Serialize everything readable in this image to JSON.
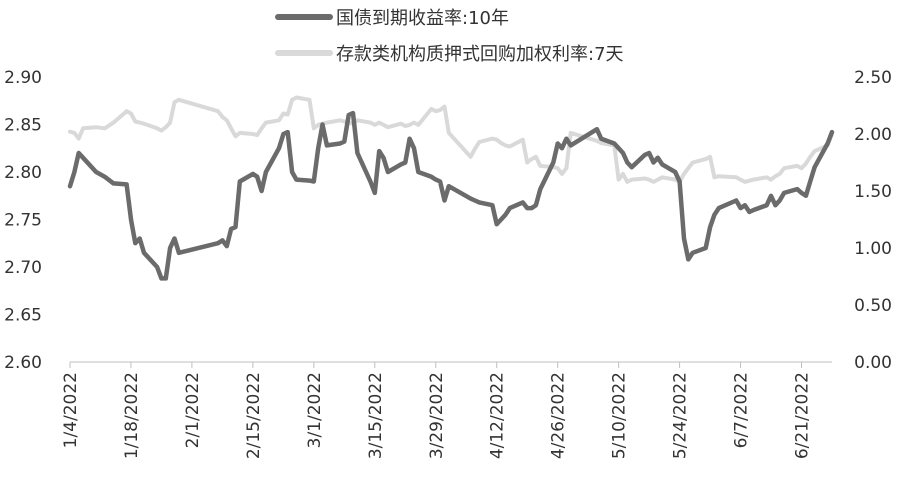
{
  "chart_data": {
    "type": "line",
    "title": "",
    "xlabel": "",
    "ylabel": "",
    "y_left_lim": [
      2.6,
      2.9
    ],
    "y_right_lim": [
      0.0,
      2.5
    ],
    "y_left_ticks": [
      "2.90",
      "2.85",
      "2.80",
      "2.75",
      "2.70",
      "2.65",
      "2.60"
    ],
    "y_right_ticks": [
      "2.50",
      "2.00",
      "1.50",
      "1.00",
      "0.50",
      "0.00"
    ],
    "x_tick_labels": [
      "1/4/2022",
      "1/18/2022",
      "2/1/2022",
      "2/15/2022",
      "3/1/2022",
      "3/15/2022",
      "3/29/2022",
      "4/12/2022",
      "4/26/2022",
      "5/10/2022",
      "5/24/2022",
      "6/7/2022",
      "6/21/2022"
    ],
    "grid": false,
    "legend_position": "top",
    "series": [
      {
        "name": "国债到期收益率:10年",
        "axis": "left",
        "color": "#6b6b6b",
        "points": [
          [
            "2022-01-04",
            2.785
          ],
          [
            "2022-01-05",
            2.8
          ],
          [
            "2022-01-06",
            2.82
          ],
          [
            "2022-01-07",
            2.815
          ],
          [
            "2022-01-10",
            2.8
          ],
          [
            "2022-01-12",
            2.795
          ],
          [
            "2022-01-14",
            2.788
          ],
          [
            "2022-01-17",
            2.787
          ],
          [
            "2022-01-18",
            2.75
          ],
          [
            "2022-01-19",
            2.725
          ],
          [
            "2022-01-20",
            2.73
          ],
          [
            "2022-01-21",
            2.715
          ],
          [
            "2022-01-24",
            2.7
          ],
          [
            "2022-01-25",
            2.688
          ],
          [
            "2022-01-26",
            2.688
          ],
          [
            "2022-01-27",
            2.72
          ],
          [
            "2022-01-28",
            2.73
          ],
          [
            "2022-01-29",
            2.715
          ],
          [
            "2022-02-07",
            2.725
          ],
          [
            "2022-02-08",
            2.728
          ],
          [
            "2022-02-09",
            2.722
          ],
          [
            "2022-02-10",
            2.74
          ],
          [
            "2022-02-11",
            2.742
          ],
          [
            "2022-02-12",
            2.79
          ],
          [
            "2022-02-15",
            2.798
          ],
          [
            "2022-02-16",
            2.795
          ],
          [
            "2022-02-17",
            2.78
          ],
          [
            "2022-02-18",
            2.8
          ],
          [
            "2022-02-21",
            2.825
          ],
          [
            "2022-02-22",
            2.84
          ],
          [
            "2022-02-23",
            2.842
          ],
          [
            "2022-02-24",
            2.8
          ],
          [
            "2022-02-25",
            2.792
          ],
          [
            "2022-02-28",
            2.791
          ],
          [
            "2022-03-01",
            2.79
          ],
          [
            "2022-03-02",
            2.825
          ],
          [
            "2022-03-03",
            2.85
          ],
          [
            "2022-03-04",
            2.828
          ],
          [
            "2022-03-07",
            2.83
          ],
          [
            "2022-03-08",
            2.832
          ],
          [
            "2022-03-09",
            2.86
          ],
          [
            "2022-03-10",
            2.862
          ],
          [
            "2022-03-11",
            2.82
          ],
          [
            "2022-03-14",
            2.79
          ],
          [
            "2022-03-15",
            2.778
          ],
          [
            "2022-03-16",
            2.822
          ],
          [
            "2022-03-17",
            2.815
          ],
          [
            "2022-03-18",
            2.8
          ],
          [
            "2022-03-21",
            2.808
          ],
          [
            "2022-03-22",
            2.81
          ],
          [
            "2022-03-23",
            2.835
          ],
          [
            "2022-03-24",
            2.825
          ],
          [
            "2022-03-25",
            2.8
          ],
          [
            "2022-03-28",
            2.795
          ],
          [
            "2022-03-29",
            2.792
          ],
          [
            "2022-03-30",
            2.79
          ],
          [
            "2022-03-31",
            2.77
          ],
          [
            "2022-04-01",
            2.785
          ],
          [
            "2022-04-06",
            2.772
          ],
          [
            "2022-04-07",
            2.77
          ],
          [
            "2022-04-08",
            2.768
          ],
          [
            "2022-04-11",
            2.765
          ],
          [
            "2022-04-12",
            2.745
          ],
          [
            "2022-04-13",
            2.75
          ],
          [
            "2022-04-14",
            2.755
          ],
          [
            "2022-04-15",
            2.762
          ],
          [
            "2022-04-18",
            2.768
          ],
          [
            "2022-04-19",
            2.762
          ],
          [
            "2022-04-20",
            2.762
          ],
          [
            "2022-04-21",
            2.765
          ],
          [
            "2022-04-22",
            2.782
          ],
          [
            "2022-04-25",
            2.81
          ],
          [
            "2022-04-26",
            2.83
          ],
          [
            "2022-04-27",
            2.825
          ],
          [
            "2022-04-28",
            2.835
          ],
          [
            "2022-04-29",
            2.828
          ],
          [
            "2022-05-05",
            2.845
          ],
          [
            "2022-05-06",
            2.835
          ],
          [
            "2022-05-09",
            2.83
          ],
          [
            "2022-05-10",
            2.825
          ],
          [
            "2022-05-11",
            2.82
          ],
          [
            "2022-05-12",
            2.81
          ],
          [
            "2022-05-13",
            2.805
          ],
          [
            "2022-05-16",
            2.818
          ],
          [
            "2022-05-17",
            2.82
          ],
          [
            "2022-05-18",
            2.81
          ],
          [
            "2022-05-19",
            2.815
          ],
          [
            "2022-05-20",
            2.808
          ],
          [
            "2022-05-23",
            2.8
          ],
          [
            "2022-05-24",
            2.79
          ],
          [
            "2022-05-25",
            2.73
          ],
          [
            "2022-05-26",
            2.708
          ],
          [
            "2022-05-27",
            2.715
          ],
          [
            "2022-05-30",
            2.72
          ],
          [
            "2022-05-31",
            2.742
          ],
          [
            "2022-06-01",
            2.755
          ],
          [
            "2022-06-02",
            2.762
          ],
          [
            "2022-06-06",
            2.77
          ],
          [
            "2022-06-07",
            2.762
          ],
          [
            "2022-06-08",
            2.765
          ],
          [
            "2022-06-09",
            2.758
          ],
          [
            "2022-06-10",
            2.76
          ],
          [
            "2022-06-13",
            2.765
          ],
          [
            "2022-06-14",
            2.775
          ],
          [
            "2022-06-15",
            2.765
          ],
          [
            "2022-06-16",
            2.77
          ],
          [
            "2022-06-17",
            2.778
          ],
          [
            "2022-06-20",
            2.782
          ],
          [
            "2022-06-21",
            2.778
          ],
          [
            "2022-06-22",
            2.775
          ],
          [
            "2022-06-23",
            2.79
          ],
          [
            "2022-06-24",
            2.805
          ],
          [
            "2022-06-27",
            2.83
          ],
          [
            "2022-06-28",
            2.842
          ]
        ]
      },
      {
        "name": "存款类机构质押式回购加权利率:7天",
        "axis": "right",
        "color": "#d9d9d9",
        "points": [
          [
            "2022-01-04",
            2.02
          ],
          [
            "2022-01-05",
            2.01
          ],
          [
            "2022-01-06",
            1.96
          ],
          [
            "2022-01-07",
            2.05
          ],
          [
            "2022-01-10",
            2.06
          ],
          [
            "2022-01-12",
            2.05
          ],
          [
            "2022-01-14",
            2.1
          ],
          [
            "2022-01-17",
            2.2
          ],
          [
            "2022-01-18",
            2.18
          ],
          [
            "2022-01-19",
            2.11
          ],
          [
            "2022-01-20",
            2.1
          ],
          [
            "2022-01-21",
            2.09
          ],
          [
            "2022-01-24",
            2.05
          ],
          [
            "2022-01-25",
            2.03
          ],
          [
            "2022-01-26",
            2.06
          ],
          [
            "2022-01-27",
            2.1
          ],
          [
            "2022-01-28",
            2.28
          ],
          [
            "2022-01-29",
            2.3
          ],
          [
            "2022-02-07",
            2.2
          ],
          [
            "2022-02-08",
            2.15
          ],
          [
            "2022-02-09",
            2.12
          ],
          [
            "2022-02-10",
            2.05
          ],
          [
            "2022-02-11",
            1.98
          ],
          [
            "2022-02-12",
            2.01
          ],
          [
            "2022-02-15",
            2.0
          ],
          [
            "2022-02-16",
            1.99
          ],
          [
            "2022-02-17",
            2.05
          ],
          [
            "2022-02-18",
            2.1
          ],
          [
            "2022-02-21",
            2.12
          ],
          [
            "2022-02-22",
            2.18
          ],
          [
            "2022-02-23",
            2.17
          ],
          [
            "2022-02-24",
            2.3
          ],
          [
            "2022-02-25",
            2.32
          ],
          [
            "2022-02-28",
            2.3
          ],
          [
            "2022-03-01",
            2.05
          ],
          [
            "2022-03-02",
            2.08
          ],
          [
            "2022-03-03",
            2.09
          ],
          [
            "2022-03-04",
            2.1
          ],
          [
            "2022-03-07",
            2.12
          ],
          [
            "2022-03-08",
            2.11
          ],
          [
            "2022-03-09",
            2.1
          ],
          [
            "2022-03-10",
            2.09
          ],
          [
            "2022-03-11",
            2.12
          ],
          [
            "2022-03-14",
            2.1
          ],
          [
            "2022-03-15",
            2.08
          ],
          [
            "2022-03-16",
            2.1
          ],
          [
            "2022-03-17",
            2.08
          ],
          [
            "2022-03-18",
            2.06
          ],
          [
            "2022-03-21",
            2.09
          ],
          [
            "2022-03-22",
            2.07
          ],
          [
            "2022-03-23",
            2.08
          ],
          [
            "2022-03-24",
            2.1
          ],
          [
            "2022-03-25",
            2.08
          ],
          [
            "2022-03-28",
            2.22
          ],
          [
            "2022-03-29",
            2.2
          ],
          [
            "2022-03-30",
            2.21
          ],
          [
            "2022-03-31",
            2.24
          ],
          [
            "2022-04-01",
            2.01
          ],
          [
            "2022-04-06",
            1.8
          ],
          [
            "2022-04-07",
            1.87
          ],
          [
            "2022-04-08",
            1.93
          ],
          [
            "2022-04-11",
            1.96
          ],
          [
            "2022-04-12",
            1.95
          ],
          [
            "2022-04-13",
            1.92
          ],
          [
            "2022-04-14",
            1.9
          ],
          [
            "2022-04-15",
            1.89
          ],
          [
            "2022-04-18",
            1.95
          ],
          [
            "2022-04-19",
            1.75
          ],
          [
            "2022-04-20",
            1.78
          ],
          [
            "2022-04-21",
            1.8
          ],
          [
            "2022-04-22",
            1.72
          ],
          [
            "2022-04-25",
            1.71
          ],
          [
            "2022-04-26",
            1.7
          ],
          [
            "2022-04-27",
            1.65
          ],
          [
            "2022-04-28",
            1.7
          ],
          [
            "2022-04-29",
            2.01
          ],
          [
            "2022-05-05",
            1.94
          ],
          [
            "2022-05-06",
            1.92
          ],
          [
            "2022-05-09",
            1.9
          ],
          [
            "2022-05-10",
            1.6
          ],
          [
            "2022-05-11",
            1.65
          ],
          [
            "2022-05-12",
            1.58
          ],
          [
            "2022-05-13",
            1.6
          ],
          [
            "2022-05-16",
            1.61
          ],
          [
            "2022-05-17",
            1.6
          ],
          [
            "2022-05-18",
            1.58
          ],
          [
            "2022-05-19",
            1.6
          ],
          [
            "2022-05-20",
            1.62
          ],
          [
            "2022-05-23",
            1.6
          ],
          [
            "2022-05-24",
            1.58
          ],
          [
            "2022-05-25",
            1.65
          ],
          [
            "2022-05-26",
            1.7
          ],
          [
            "2022-05-27",
            1.75
          ],
          [
            "2022-05-30",
            1.78
          ],
          [
            "2022-05-31",
            1.8
          ],
          [
            "2022-06-01",
            1.62
          ],
          [
            "2022-06-02",
            1.63
          ],
          [
            "2022-06-06",
            1.62
          ],
          [
            "2022-06-07",
            1.6
          ],
          [
            "2022-06-08",
            1.58
          ],
          [
            "2022-06-09",
            1.59
          ],
          [
            "2022-06-10",
            1.6
          ],
          [
            "2022-06-13",
            1.62
          ],
          [
            "2022-06-14",
            1.6
          ],
          [
            "2022-06-15",
            1.63
          ],
          [
            "2022-06-16",
            1.65
          ],
          [
            "2022-06-17",
            1.7
          ],
          [
            "2022-06-20",
            1.72
          ],
          [
            "2022-06-21",
            1.7
          ],
          [
            "2022-06-22",
            1.74
          ],
          [
            "2022-06-23",
            1.8
          ],
          [
            "2022-06-24",
            1.85
          ],
          [
            "2022-06-27",
            1.9
          ],
          [
            "2022-06-28",
            2.0
          ]
        ]
      }
    ]
  }
}
